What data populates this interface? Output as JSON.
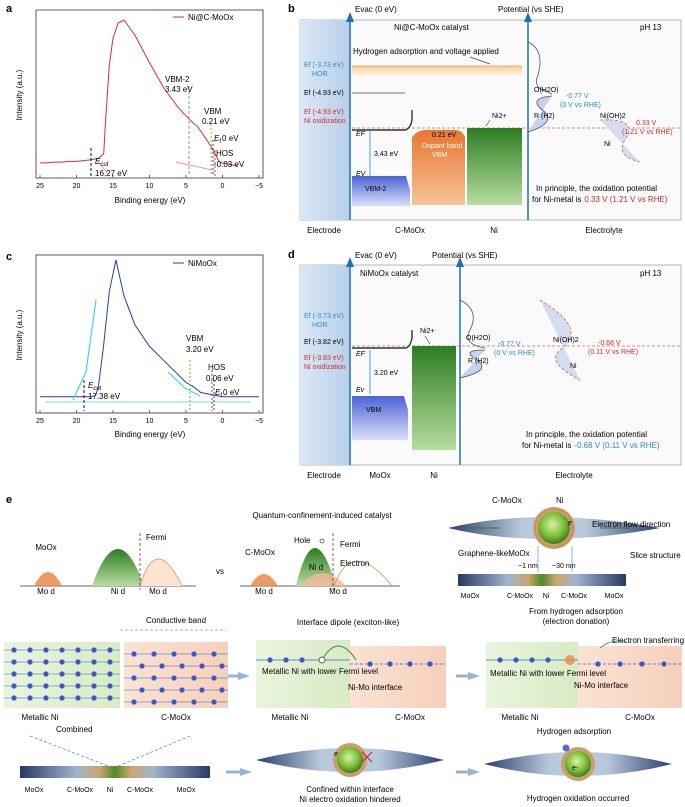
{
  "colors": {
    "red_curve": "#d62f2f",
    "blue_curve": "#2f3aa8",
    "cyan_fit": "#3fd4e6",
    "orange": "#e9893e",
    "green": "#3f8f2a",
    "electrode_blue": "#c9dcf1",
    "accent_red": "#d12b2b",
    "accent_blue": "#2d8bd6"
  },
  "panels": {
    "a": {
      "letter": "a",
      "legend": "Ni@C-MoOx",
      "ylabel": "Intensity (a.u.)",
      "xlabel": "Binding energy (eV)",
      "ecut": "E",
      "ecut_sub": "cut",
      "ecut_val": "16.27 eV",
      "vbm2": "VBM-2",
      "vbm2_val": "3.43 eV",
      "vbm": "VBM",
      "vbm_val": "0.21 eV",
      "ef": "E",
      "ef_sub": "f",
      "ef_val": "0 eV",
      "hos": "HOS",
      "hos_val": "-0.03 eV"
    },
    "c": {
      "letter": "c",
      "legend": "NiMoOx",
      "ylabel": "Intensity (a.u.)",
      "xlabel": "Binding energy (eV)",
      "ecut": "E",
      "ecut_sub": "cut",
      "ecut_val": "17.38 eV",
      "vbm": "VBM",
      "vbm_val": "3.20 eV",
      "hos": "HOS",
      "hos_val": "0.06 eV",
      "ef": "E",
      "ef_sub": "f",
      "ef_val": "0 eV"
    },
    "b": {
      "letter": "b",
      "evac": "Evac (0 eV)",
      "potential": "Potential (vs SHE)",
      "catalyst": "Ni@C-MoOx catalyst",
      "ph": "pH 13",
      "hydrogen": "Hydrogen adsorption and voltage applied",
      "ef_hor": "Ef (-3.73 eV)",
      "hor": "HOR",
      "ef_ni": "Ef (-4.93 eV)",
      "ef_ox": "Ef (-4.93 eV)",
      "ni_ox": "Ni oxidization",
      "gap": "3.43 eV",
      "dopant_gap": "0.21 eV",
      "dopant": "Dopant band",
      "dopant_vbm": "VBM",
      "vbm2": "VBM-2",
      "efl": "EF",
      "evl": "EV",
      "ni2": "Ni2+",
      "oh2o": "O(H2O)",
      "rh2": "R (H2)",
      "pot1": "-0.77 V",
      "pot1_rhe": "(0 V vs RHE)",
      "nioh": "Ni(OH)2",
      "ni": "Ni",
      "pot2": "0.33 V",
      "pot2_rhe": "(1.21 V vs RHE)",
      "principle1": "In principle, the oxidation potential",
      "principle2": "for Ni-metal is",
      "principle_val": "0.33 V (1.21 V vs RHE)",
      "bottom": [
        "Electrode",
        "C-MoOx",
        "Ni",
        "Electrolyte"
      ]
    },
    "d": {
      "letter": "d",
      "evac": "Evac (0 eV)",
      "potential": "Potential (vs SHE)",
      "catalyst": "NiMoOx catalyst",
      "ph": "pH 13",
      "ef_hor": "Ef (-3.73 eV)",
      "hor": "HOR",
      "ef_ni": "Ef (-3.82 eV)",
      "ef_ox": "Ef (-3.83 eV)",
      "ni_ox": "Ni oxidization",
      "gap": "3.20 eV",
      "vbm": "VBM",
      "efl": "EF",
      "evl": "Ev",
      "ni2": "Ni2+",
      "oh2o": "O(H2O)",
      "rh2": "R (H2)",
      "pot1": "-0.77 V",
      "pot1_rhe": "(0 V vs RHE)",
      "nioh": "Ni(OH)2",
      "ni": "Ni",
      "pot2": "-0.68 V",
      "pot2_rhe": "(0.11 V vs RHE)",
      "principle1": "In principle, the oxidation potential",
      "principle2": "for Ni-metal is",
      "principle_val": "-0.68 V (0.11 V vs RHE)",
      "bottom": [
        "Electrode",
        "MoOx",
        "Ni",
        "Electrolyte"
      ]
    },
    "e": {
      "letter": "e",
      "title": "Quantum-confinement-induced catalyst",
      "vs": "vs",
      "moox": "MoOx",
      "mod": "Mo d",
      "nid": "Ni d",
      "mod2": "Mo d",
      "fermi": "Fermi",
      "cmoox": "C-MoOx",
      "hole": "Hole",
      "electron": "Electron",
      "fermi2": "Fermi",
      "nid2": "Ni d",
      "mod3": "Mo d",
      "mod4": "Mo d",
      "ni_label": "Ni",
      "cmoox2": "C-MoOx",
      "e_minus": "e",
      "flow": "Electron flow direction",
      "graphene": "Graphene-likeMoOx",
      "nm1": "~1 nm",
      "nm30": "~30 nm",
      "slice": "Slice structure",
      "strip1": [
        "MoOx",
        "C-MoOx",
        "Ni",
        "C-MoOx",
        "MoOx"
      ],
      "conductive": "Conductive band",
      "metallic": "Metallic Ni",
      "cmoox3": "C-MoOx",
      "combined": "Combined",
      "strip2": [
        "MoOx",
        "C-MoOx",
        "Ni",
        "C-MoOx",
        "MoOx"
      ],
      "dipole": "Interface dipole (exciton-like)",
      "lower": "Metallic Ni with lower Fermi level",
      "interface": "Ni-Mo interface",
      "metallic2": "Metallic Ni",
      "cmoox4": "C-MoOx",
      "confined": "Confined within interface",
      "hindered": "Ni electro oxidation hindered",
      "from_h": "From hydrogen adsorption",
      "donation": "(electron donation)",
      "transfer": "Electron transferring",
      "lower2": "Metallic Ni with lower Fermi level",
      "interface2": "Ni-Mo interface",
      "metallic3": "Metallic Ni",
      "cmoox5": "C-MoOx",
      "hads": "Hydrogen adsorption",
      "hox": "Hydrogen oxidation occurred",
      "e_minus2": "e",
      "e_minus3": "e-"
    }
  },
  "chart_data": [
    {
      "type": "line",
      "title": "",
      "series": [
        {
          "name": "Ni@C-MoOx",
          "x": [
            -2,
            -1,
            0,
            0.5,
            1,
            2,
            3,
            3.43,
            4,
            6,
            8,
            10,
            12,
            13.5,
            14.3,
            15,
            15.5,
            16,
            16.27,
            17,
            18,
            19,
            20,
            21,
            22,
            23,
            24,
            25
          ],
          "y": [
            0.04,
            0.05,
            0.06,
            0.07,
            0.12,
            0.2,
            0.27,
            0.3,
            0.32,
            0.42,
            0.55,
            0.72,
            0.9,
            1.0,
            0.98,
            0.88,
            0.7,
            0.35,
            0.12,
            0.09,
            0.08,
            0.075,
            0.07,
            0.07,
            0.065,
            0.065,
            0.06,
            0.06
          ]
        }
      ],
      "xlabel": "Binding energy (eV)",
      "ylabel": "Intensity (a.u.)",
      "xlim": [
        25,
        -5
      ],
      "xticks": [
        25,
        20,
        15,
        10,
        5,
        0,
        -5
      ],
      "annotations": [
        "Ecut 16.27 eV",
        "VBM-2 3.43 eV",
        "VBM 0.21 eV",
        "Ef 0 eV",
        "HOS -0.03 eV"
      ]
    },
    {
      "type": "line",
      "title": "",
      "series": [
        {
          "name": "NiMoOx",
          "x": [
            -5,
            -3,
            -1,
            0,
            1,
            2,
            3,
            3.2,
            4,
            5,
            6,
            8,
            10,
            12,
            13.5,
            14.6,
            15.5,
            16.3,
            17,
            17.38,
            18,
            20,
            22,
            25
          ],
          "y": [
            0.05,
            0.05,
            0.05,
            0.05,
            0.06,
            0.07,
            0.08,
            0.09,
            0.12,
            0.15,
            0.2,
            0.3,
            0.4,
            0.55,
            0.75,
            1.0,
            0.78,
            0.4,
            0.12,
            0.06,
            0.05,
            0.05,
            0.05,
            0.05
          ]
        }
      ],
      "xlabel": "Binding energy (eV)",
      "ylabel": "Intensity (a.u.)",
      "xlim": [
        25,
        -5
      ],
      "xticks": [
        25,
        20,
        15,
        10,
        5,
        0,
        -5
      ],
      "annotations": [
        "Ecut 17.38 eV",
        "VBM 3.20 eV",
        "HOS 0.06 eV",
        "Ef 0 eV"
      ]
    }
  ]
}
